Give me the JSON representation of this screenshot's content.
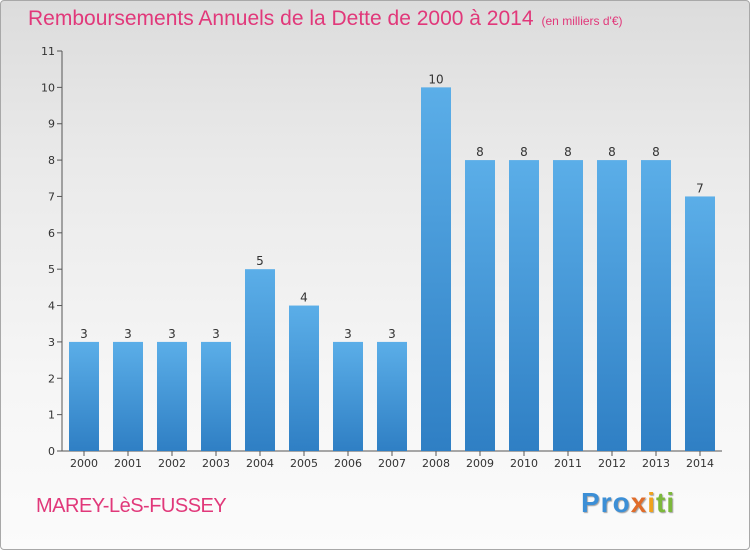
{
  "header": {
    "title": "Remboursements Annuels de la Dette de 2000 à 2014",
    "unit": "(en milliers d'€)"
  },
  "footer": {
    "commune": "MAREY-LèS-FUSSEY",
    "logo": {
      "p1": "Pro",
      "p2": "x",
      "p3": "i",
      "p4": "ti"
    }
  },
  "colors": {
    "bar_top": "#5baee8",
    "bar_bottom": "#2f7fc4",
    "title": "#e1387a"
  },
  "chart_data": {
    "type": "bar",
    "title": "Remboursements Annuels de la Dette de 2000 à 2014",
    "subtitle": "(en milliers d'€)",
    "categories": [
      "2000",
      "2001",
      "2002",
      "2003",
      "2004",
      "2005",
      "2006",
      "2007",
      "2008",
      "2009",
      "2010",
      "2011",
      "2012",
      "2013",
      "2014"
    ],
    "values": [
      3,
      3,
      3,
      3,
      5,
      4,
      3,
      3,
      10,
      8,
      8,
      8,
      8,
      8,
      7
    ],
    "ylim": [
      0,
      11
    ],
    "yticks": [
      0,
      1,
      2,
      3,
      4,
      5,
      6,
      7,
      8,
      9,
      10,
      11
    ],
    "data_labels": true,
    "grid": false,
    "legend": "none"
  }
}
